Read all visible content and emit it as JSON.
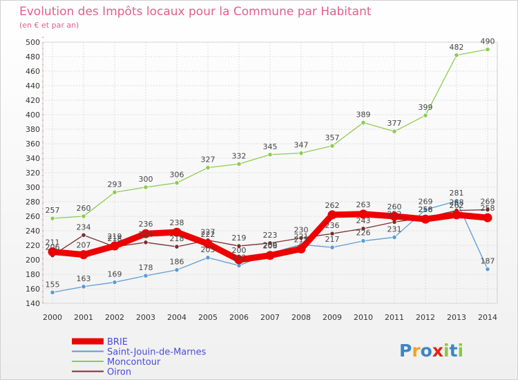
{
  "chart_data": {
    "type": "line",
    "title": "Evolution des Impôts locaux pour la Commune par Habitant",
    "subtitle": "(en € et par an)",
    "categories": [
      "2000",
      "2001",
      "2002",
      "2003",
      "2004",
      "2005",
      "2006",
      "2007",
      "2008",
      "2009",
      "2010",
      "2011",
      "2012",
      "2013",
      "2014"
    ],
    "ylim": [
      140,
      500
    ],
    "yticks": [
      140,
      160,
      180,
      200,
      220,
      240,
      260,
      280,
      300,
      320,
      340,
      360,
      380,
      400,
      420,
      440,
      460,
      480,
      500
    ],
    "grid": true,
    "legend_position": "bottom-left",
    "series": [
      {
        "name": "BRIE",
        "color": "#ee0000",
        "values": [
          211,
          207,
          219,
          236,
          238,
          222,
          200,
          206,
          215,
          262,
          263,
          260,
          256,
          262,
          258
        ]
      },
      {
        "name": "Saint-Jouin-de-Marnes",
        "color": "#5b9bd5",
        "values": [
          155,
          163,
          169,
          178,
          186,
          203,
          192,
          209,
          221,
          217,
          226,
          231,
          269,
          281,
          187
        ]
      },
      {
        "name": "Moncontour",
        "color": "#8ccd4f",
        "values": [
          257,
          260,
          293,
          300,
          306,
          327,
          332,
          345,
          347,
          357,
          389,
          377,
          399,
          482,
          490
        ]
      },
      {
        "name": "Oiron",
        "color": "#7a2e2e",
        "values": [
          206,
          234,
          218,
          224,
          218,
          227,
          219,
          223,
          230,
          236,
          243,
          252,
          258,
          268,
          269
        ]
      }
    ]
  },
  "brand": {
    "letters": [
      "P",
      "r",
      "o",
      "x",
      "i",
      "t",
      "i"
    ],
    "colors": [
      "#3a86c8",
      "#f4a21f",
      "#3a86c8",
      "#e2231a",
      "#8cc63f",
      "#3a86c8",
      "#8cc63f"
    ]
  }
}
